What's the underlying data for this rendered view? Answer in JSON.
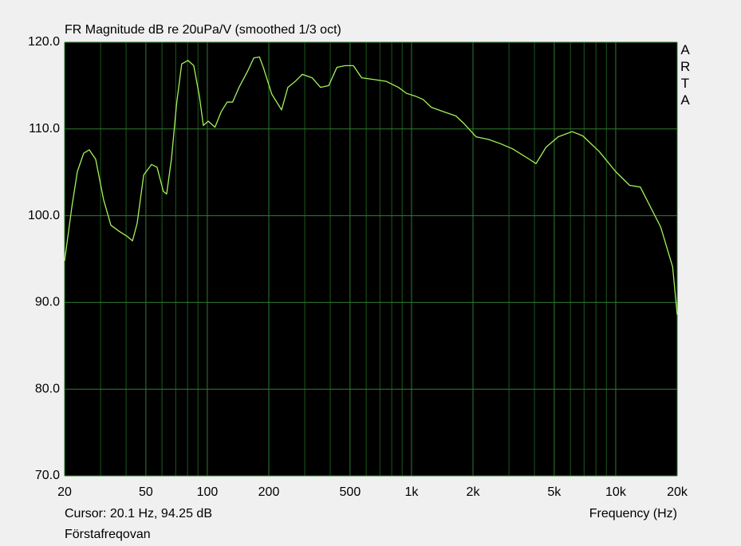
{
  "chart_data": {
    "type": "line",
    "title": "FR Magnitude dB re 20uPa/V (smoothed 1/3 oct)",
    "watermark": "ARTA",
    "cursor": "Cursor: 20.1 Hz, 94.25 dB",
    "x_label": "Frequency (Hz)",
    "footer": "Förstafreqovan",
    "xscale": "log",
    "grid": true,
    "color": "#a4f25a",
    "xlim": [
      20,
      20000
    ],
    "ylim": [
      70,
      120
    ],
    "xticks": [
      20,
      50,
      100,
      200,
      500,
      {
        "value": 1000,
        "label": "1k"
      },
      {
        "value": 2000,
        "label": "2k"
      },
      {
        "value": 5000,
        "label": "5k"
      },
      {
        "value": 10000,
        "label": "10k"
      },
      {
        "value": 20000,
        "label": "20k"
      }
    ],
    "x_minor_ticks": [
      30,
      40,
      60,
      70,
      80,
      90,
      300,
      400,
      600,
      700,
      800,
      900,
      3000,
      4000,
      6000,
      7000,
      8000,
      9000
    ],
    "yticks": [
      {
        "value": 70,
        "label": "70.0"
      },
      {
        "value": 80,
        "label": "80.0"
      },
      {
        "value": 90,
        "label": "90.0"
      },
      {
        "value": 100,
        "label": "100.0"
      },
      {
        "value": 110,
        "label": "110.0"
      },
      {
        "value": 120,
        "label": "120.0"
      }
    ],
    "x": [
      20,
      21.7,
      23.1,
      24.8,
      26.4,
      28.4,
      31,
      33.7,
      37,
      40.6,
      43,
      45.3,
      48.8,
      53.3,
      56.7,
      60.9,
      63.2,
      66.7,
      70.7,
      74.9,
      80.4,
      85.8,
      91.4,
      95.6,
      101,
      109,
      117,
      125,
      133,
      143,
      157,
      169,
      180,
      188,
      207,
      231,
      248,
      267,
      292,
      326,
      358,
      393,
      431,
      473,
      519,
      570,
      654,
      750,
      862,
      946,
      1040,
      1140,
      1250,
      1430,
      1650,
      1810,
      2070,
      2380,
      2730,
      3130,
      3780,
      4070,
      4560,
      5230,
      6120,
      6900,
      8300,
      9980,
      11700,
      13200,
      14800,
      16600,
      19000,
      20000
    ],
    "values": [
      94.8,
      101,
      105.1,
      107.2,
      107.6,
      106.5,
      101.9,
      98.9,
      98.2,
      97.6,
      97.1,
      99.1,
      104.7,
      105.9,
      105.6,
      102.8,
      102.5,
      106.5,
      112.9,
      117.5,
      117.9,
      117.3,
      113.8,
      110.4,
      110.9,
      110.2,
      112,
      113.1,
      113.1,
      114.8,
      116.6,
      118.2,
      118.3,
      117.1,
      114,
      112.2,
      114.8,
      115.4,
      116.3,
      115.9,
      114.8,
      115,
      117.1,
      117.3,
      117.3,
      115.9,
      115.7,
      115.5,
      114.8,
      114.1,
      113.8,
      113.4,
      112.5,
      112,
      111.5,
      110.6,
      109.1,
      108.8,
      108.3,
      107.7,
      106.5,
      106,
      107.9,
      109.1,
      109.7,
      109.2,
      107.4,
      105.1,
      103.5,
      103.3,
      101,
      98.7,
      94.1,
      88.6
    ]
  }
}
